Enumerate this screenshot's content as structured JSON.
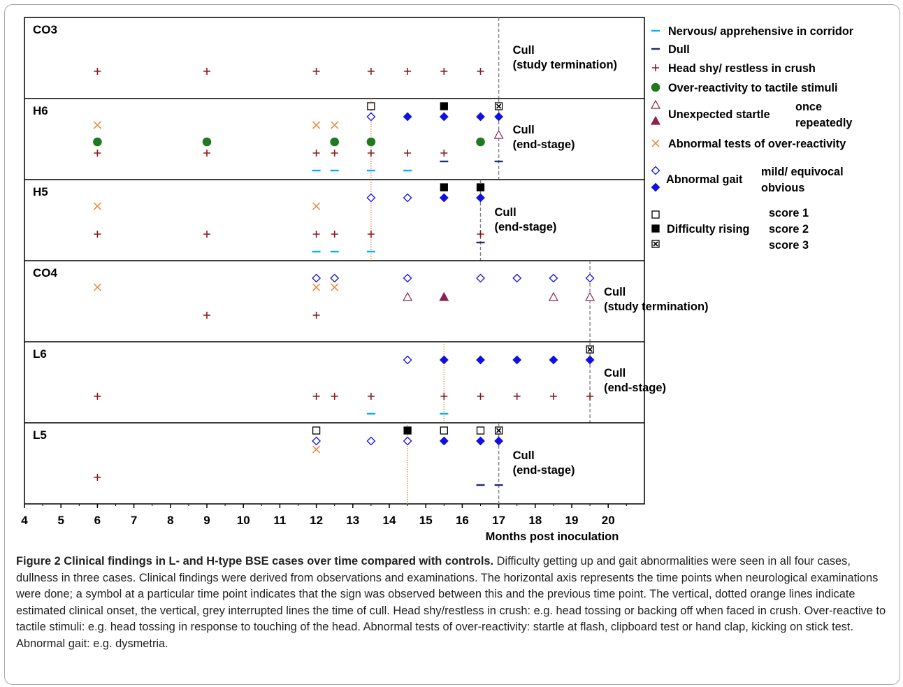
{
  "caption": {
    "title": "Figure 2 Clinical findings in L- and H-type BSE cases over time compared with controls.",
    "text": "Difficulty getting up and gait abnormalities were seen in all four cases, dullness in three cases. Clinical findings were derived from observations and examinations. The horizontal axis represents the time points when neurological examinations were done; a symbol at a particular time point indicates that the sign was observed between this and the previous time point. The vertical, dotted orange lines indicate estimated clinical onset, the vertical, grey interrupted lines the time of cull. Head shy/restless in crush: e.g. head tossing or backing off when faced in crush. Over-reactive to tactile stimuli: e.g. head tossing in response to touching of the head. Abnormal tests of over-reactivity: startle at flash, clipboard test or hand clap, kicking on stick test. Abnormal gait: e.g. dysmetria."
  },
  "chart_data": {
    "type": "scatter",
    "xlabel": "Months post inoculation",
    "xlim": [
      4,
      21
    ],
    "xticks": [
      "4",
      "5",
      "6",
      "7",
      "8",
      "9",
      "10",
      "11",
      "12",
      "13",
      "14",
      "15",
      "16",
      "17",
      "18",
      "19",
      "20"
    ],
    "colors": {
      "nervous": "#00b0f0",
      "dull": "#1f2a7a",
      "headshy": "#8b1a1a",
      "tactile": "#1f7a1f",
      "startle": "#8b2252",
      "overreact": "#f08030",
      "gait": "#1010e0",
      "rising": "#000000",
      "onset": "#f08030",
      "cull": "#808080"
    },
    "legend": [
      {
        "key": "nervous",
        "label": "Nervous/ apprehensive in corridor"
      },
      {
        "key": "dull",
        "label": "Dull"
      },
      {
        "key": "headshy",
        "label": "Head shy/ restless in crush"
      },
      {
        "key": "tactile",
        "label": "Over-reactivity to tactile stimuli"
      },
      {
        "key": "startle",
        "label": "Unexpected startle",
        "sub": [
          "once",
          "repeatedly"
        ]
      },
      {
        "key": "overreact",
        "label": "Abnormal tests of over-reactivity"
      },
      {
        "key": "gait",
        "label": "Abnormal gait",
        "sub": [
          "mild/ equivocal",
          "obvious"
        ]
      },
      {
        "key": "rising",
        "label": "Difficulty rising",
        "sub": [
          "score 1",
          "score 2",
          "score 3"
        ]
      }
    ],
    "panels": [
      {
        "name": "CO3",
        "cull_label": [
          "Cull",
          "(study termination)"
        ],
        "cull_x": 17,
        "onset_x": null,
        "headshy": [
          6,
          9,
          12,
          13.5,
          14.5,
          15.5,
          16.5
        ]
      },
      {
        "name": "H6",
        "cull_label": [
          "Cull",
          "(end-stage)"
        ],
        "cull_x": 17,
        "onset_x": 13.5,
        "rising1": [
          13.5
        ],
        "rising2": [
          15.5
        ],
        "rising3": [
          17
        ],
        "gait_mild": [
          13.5
        ],
        "gait_obvious": [
          14.5,
          15.5,
          16.5,
          17
        ],
        "overreact": [
          6,
          12,
          12.5
        ],
        "startle_once": [
          17
        ],
        "tactile": [
          6,
          9,
          12.5,
          13.5,
          16.5
        ],
        "headshy": [
          6,
          9,
          12,
          12.5,
          13.5,
          14.5,
          15.5
        ],
        "nervous": [
          12,
          12.5,
          13.5,
          14.5
        ],
        "dull": [
          15.5,
          17
        ]
      },
      {
        "name": "H5",
        "cull_label": [
          "Cull",
          "(end-stage)"
        ],
        "cull_x": 16.5,
        "onset_x": 13.5,
        "rising2": [
          15.5,
          16.5
        ],
        "gait_mild": [
          13.5,
          14.5
        ],
        "gait_obvious": [
          15.5,
          16.5
        ],
        "overreact": [
          6,
          12
        ],
        "headshy": [
          6,
          9,
          12,
          12.5,
          13.5,
          16.5
        ],
        "nervous": [
          12,
          12.5,
          13.5
        ],
        "dull": [
          16.5
        ]
      },
      {
        "name": "CO4",
        "cull_label": [
          "Cull",
          "(study termination)"
        ],
        "cull_x": 19.5,
        "onset_x": null,
        "gait_mild": [
          12,
          12.5,
          14.5,
          16.5,
          17.5,
          18.5,
          19.5
        ],
        "overreact": [
          6,
          12,
          12.5
        ],
        "startle_once": [
          14.5,
          18.5,
          19.5
        ],
        "startle_repeated": [
          15.5
        ],
        "headshy": [
          9,
          12
        ]
      },
      {
        "name": "L6",
        "cull_label": [
          "Cull",
          "(end-stage)"
        ],
        "cull_x": 19.5,
        "onset_x": 15.5,
        "rising3": [
          19.5
        ],
        "gait_mild": [
          14.5
        ],
        "gait_obvious": [
          15.5,
          16.5,
          17.5,
          18.5,
          19.5
        ],
        "headshy": [
          6,
          12,
          12.5,
          13.5,
          15.5,
          16.5,
          17.5,
          18.5,
          19.5
        ],
        "nervous": [
          13.5,
          15.5
        ]
      },
      {
        "name": "L5",
        "cull_label": [
          "Cull",
          "(end-stage)"
        ],
        "cull_x": 17,
        "onset_x": 14.5,
        "rising1": [
          12,
          15.5,
          16.5
        ],
        "rising2": [
          14.5
        ],
        "rising3": [
          17
        ],
        "gait_mild": [
          12,
          13.5,
          14.5
        ],
        "gait_obvious": [
          15.5,
          16.5,
          17
        ],
        "overreact": [
          12
        ],
        "headshy": [
          6
        ],
        "dull": [
          16.5,
          17
        ]
      }
    ]
  }
}
